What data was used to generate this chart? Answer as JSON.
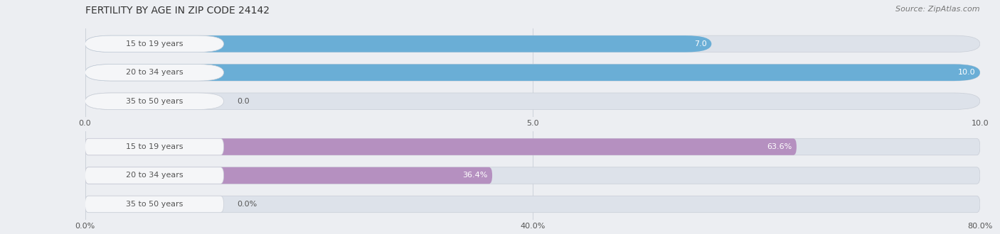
{
  "title": "FERTILITY BY AGE IN ZIP CODE 24142",
  "source": "Source: ZipAtlas.com",
  "top_chart": {
    "categories": [
      "15 to 19 years",
      "20 to 34 years",
      "35 to 50 years"
    ],
    "values": [
      7.0,
      10.0,
      0.0
    ],
    "xlim": [
      0,
      10
    ],
    "xticks": [
      0.0,
      5.0,
      10.0
    ],
    "xtick_labels": [
      "0.0",
      "5.0",
      "10.0"
    ],
    "bar_color": "#6aaed6",
    "value_labels": [
      "7.0",
      "10.0",
      "0.0"
    ]
  },
  "bottom_chart": {
    "categories": [
      "15 to 19 years",
      "20 to 34 years",
      "35 to 50 years"
    ],
    "values": [
      63.6,
      36.4,
      0.0
    ],
    "xlim": [
      0,
      80
    ],
    "xticks": [
      0.0,
      40.0,
      80.0
    ],
    "xtick_labels": [
      "0.0%",
      "40.0%",
      "80.0%"
    ],
    "bar_color": "#b590c0",
    "value_labels": [
      "63.6%",
      "36.4%",
      "0.0%"
    ]
  },
  "bar_height": 0.58,
  "label_fontsize": 8.0,
  "tick_fontsize": 8.0,
  "title_fontsize": 10.0,
  "source_fontsize": 8.0,
  "label_color": "#555555",
  "fig_bg": "#eceef2",
  "bar_bg_color": "#dde2ea",
  "label_box_color": "#f5f6f8"
}
